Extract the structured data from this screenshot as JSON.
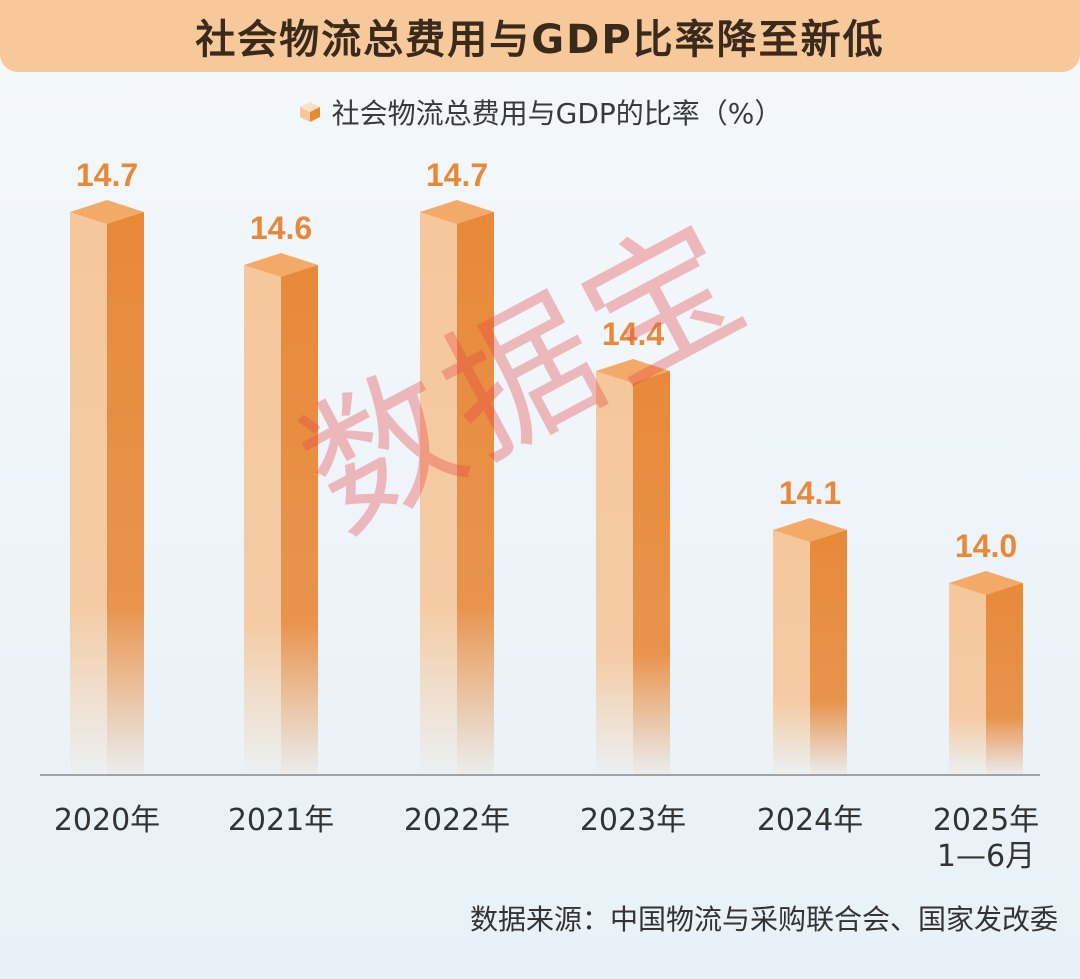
{
  "header": {
    "title": "社会物流总费用与GDP比率降至新低"
  },
  "watermark": "数据宝",
  "footer": {
    "source": "数据来源：中国物流与采购联合会、国家发改委"
  },
  "chart_data": {
    "type": "bar",
    "categories": [
      "2020年",
      "2021年",
      "2022年",
      "2023年",
      "2024年",
      "2025年\n1—6月"
    ],
    "series": [
      {
        "name": "社会物流总费用与GDP的比率（%）",
        "values": [
          14.7,
          14.6,
          14.7,
          14.4,
          14.1,
          14.0
        ]
      }
    ],
    "value_labels": [
      "14.7",
      "14.6",
      "14.7",
      "14.4",
      "14.1",
      "14.0"
    ],
    "legend": "top-center",
    "grid": false,
    "colors": {
      "bar_light": "#f5c79b",
      "bar_dark": "#e8893a",
      "label": "#e8893a",
      "axis": "#888888"
    }
  }
}
